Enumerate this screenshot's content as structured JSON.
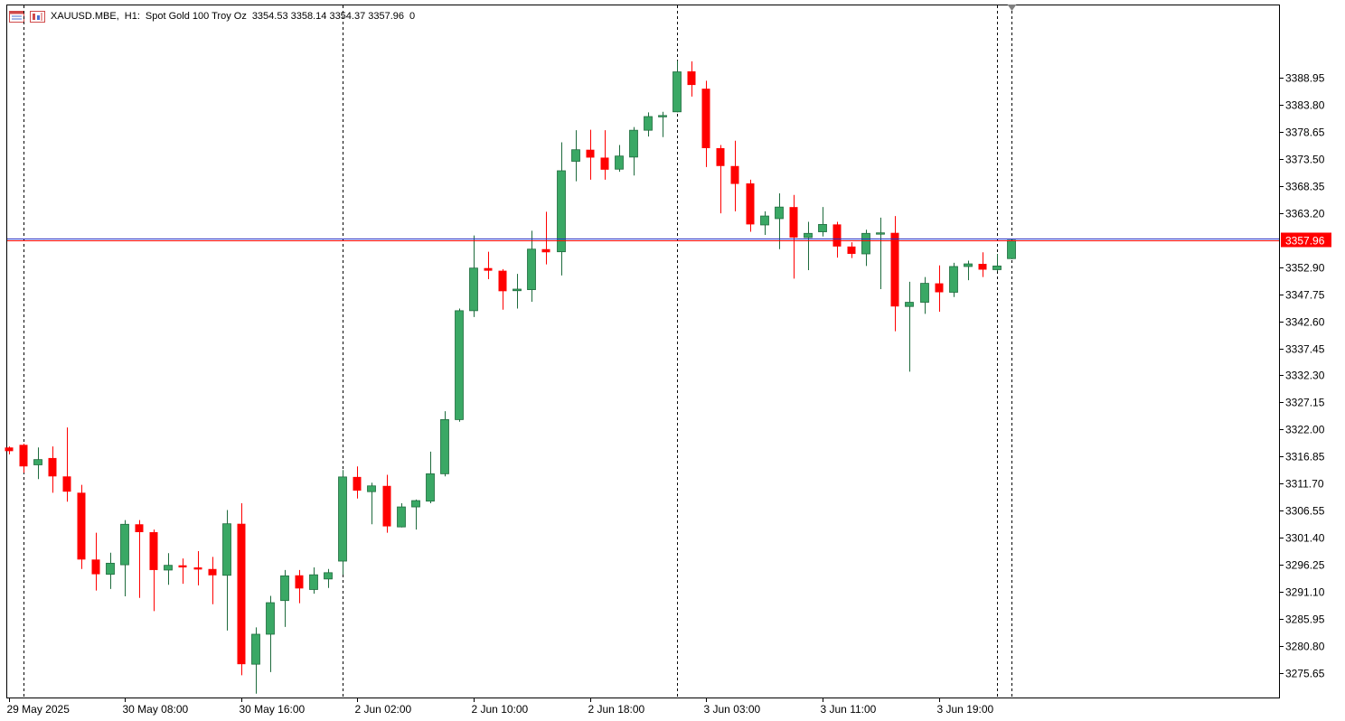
{
  "header": {
    "symbol": "XAUUSD.MBE,",
    "timeframe": "H1:",
    "description": "Spot Gold 100 Troy Oz",
    "ohlc": "3354.53 3358.14 3354.37 3357.96",
    "volume": "0"
  },
  "colors": {
    "bull": "#3aa865",
    "bull_border": "#1e6b3d",
    "bear": "#ff0000",
    "grid": "#000000",
    "bid_line": "#ff0000",
    "ask_line": "#2b2bbf",
    "price_tag_bg": "#ff0000",
    "axis": "#000000"
  },
  "icons": [
    "chart-window-icon",
    "trade-icon"
  ],
  "current_price": "3357.96",
  "chart_data": {
    "type": "candlestick",
    "symbol": "XAUUSD.MBE",
    "timeframe": "H1",
    "ylim": [
      3270.9,
      3402.8
    ],
    "yticks": [
      "3388.95",
      "3383.80",
      "3378.65",
      "3373.50",
      "3368.35",
      "3363.20",
      "3352.90",
      "3347.75",
      "3342.60",
      "3337.45",
      "3332.30",
      "3327.15",
      "3322.00",
      "3316.85",
      "3311.70",
      "3306.55",
      "3301.40",
      "3296.25",
      "3291.10",
      "3285.95",
      "3280.80",
      "3275.65"
    ],
    "xticks": [
      "29 May 2025",
      "30 May 08:00",
      "30 May 16:00",
      "2 Jun 02:00",
      "2 Jun 10:00",
      "2 Jun 18:00",
      "3 Jun 03:00",
      "3 Jun 11:00",
      "3 Jun 19:00"
    ],
    "session_separators": [
      1,
      23,
      46,
      68
    ],
    "candles": [
      {
        "o": 3318.6,
        "h": 3318.8,
        "l": 3317.3,
        "c": 3317.9
      },
      {
        "o": 3319.1,
        "h": 3319.3,
        "l": 3313.8,
        "c": 3315.0
      },
      {
        "o": 3315.3,
        "h": 3318.6,
        "l": 3312.6,
        "c": 3316.3
      },
      {
        "o": 3316.6,
        "h": 3318.8,
        "l": 3310.0,
        "c": 3313.1
      },
      {
        "o": 3313.1,
        "h": 3322.4,
        "l": 3308.3,
        "c": 3310.2
      },
      {
        "o": 3310.0,
        "h": 3311.5,
        "l": 3295.5,
        "c": 3297.3
      },
      {
        "o": 3297.3,
        "h": 3302.4,
        "l": 3291.4,
        "c": 3294.5
      },
      {
        "o": 3294.5,
        "h": 3298.6,
        "l": 3291.7,
        "c": 3296.6
      },
      {
        "o": 3296.3,
        "h": 3304.8,
        "l": 3290.3,
        "c": 3304.0
      },
      {
        "o": 3304.0,
        "h": 3304.8,
        "l": 3290.0,
        "c": 3302.5
      },
      {
        "o": 3302.5,
        "h": 3303.0,
        "l": 3287.5,
        "c": 3295.3
      },
      {
        "o": 3295.3,
        "h": 3298.5,
        "l": 3292.5,
        "c": 3296.2
      },
      {
        "o": 3296.2,
        "h": 3297.5,
        "l": 3292.7,
        "c": 3295.8
      },
      {
        "o": 3295.8,
        "h": 3298.9,
        "l": 3292.4,
        "c": 3295.4
      },
      {
        "o": 3295.5,
        "h": 3297.8,
        "l": 3288.8,
        "c": 3294.3
      },
      {
        "o": 3294.3,
        "h": 3306.7,
        "l": 3283.8,
        "c": 3304.1
      },
      {
        "o": 3304.1,
        "h": 3308.0,
        "l": 3275.3,
        "c": 3277.4
      },
      {
        "o": 3277.4,
        "h": 3284.4,
        "l": 3271.8,
        "c": 3283.1
      },
      {
        "o": 3283.1,
        "h": 3290.4,
        "l": 3275.9,
        "c": 3289.1
      },
      {
        "o": 3289.5,
        "h": 3295.3,
        "l": 3284.5,
        "c": 3294.2
      },
      {
        "o": 3294.3,
        "h": 3295.3,
        "l": 3289.0,
        "c": 3291.8
      },
      {
        "o": 3291.6,
        "h": 3295.8,
        "l": 3290.8,
        "c": 3294.4
      },
      {
        "o": 3293.6,
        "h": 3295.5,
        "l": 3291.9,
        "c": 3294.8
      },
      {
        "o": 3297.0,
        "h": 3314.3,
        "l": 3294.4,
        "c": 3313.0
      },
      {
        "o": 3313.0,
        "h": 3315.0,
        "l": 3308.9,
        "c": 3310.4
      },
      {
        "o": 3310.2,
        "h": 3311.9,
        "l": 3304.0,
        "c": 3311.3
      },
      {
        "o": 3311.3,
        "h": 3313.4,
        "l": 3302.4,
        "c": 3303.6
      },
      {
        "o": 3303.5,
        "h": 3308.0,
        "l": 3303.4,
        "c": 3307.3
      },
      {
        "o": 3307.3,
        "h": 3308.7,
        "l": 3303.0,
        "c": 3308.5
      },
      {
        "o": 3308.4,
        "h": 3317.8,
        "l": 3308.0,
        "c": 3313.6
      },
      {
        "o": 3313.6,
        "h": 3325.5,
        "l": 3313.1,
        "c": 3323.9
      },
      {
        "o": 3323.9,
        "h": 3345.0,
        "l": 3323.5,
        "c": 3344.6
      },
      {
        "o": 3344.6,
        "h": 3358.9,
        "l": 3343.4,
        "c": 3352.7
      },
      {
        "o": 3352.7,
        "h": 3355.8,
        "l": 3350.6,
        "c": 3352.2
      },
      {
        "o": 3352.2,
        "h": 3352.5,
        "l": 3344.8,
        "c": 3348.3
      },
      {
        "o": 3348.4,
        "h": 3351.6,
        "l": 3345.0,
        "c": 3348.7
      },
      {
        "o": 3348.6,
        "h": 3359.8,
        "l": 3346.3,
        "c": 3356.3
      },
      {
        "o": 3356.3,
        "h": 3363.4,
        "l": 3353.4,
        "c": 3355.7
      },
      {
        "o": 3355.8,
        "h": 3376.6,
        "l": 3351.3,
        "c": 3371.2
      },
      {
        "o": 3373.0,
        "h": 3378.9,
        "l": 3369.2,
        "c": 3375.2
      },
      {
        "o": 3375.2,
        "h": 3379.0,
        "l": 3369.5,
        "c": 3373.7
      },
      {
        "o": 3373.7,
        "h": 3378.9,
        "l": 3369.5,
        "c": 3371.4
      },
      {
        "o": 3371.5,
        "h": 3376.1,
        "l": 3371.0,
        "c": 3374.0
      },
      {
        "o": 3373.8,
        "h": 3379.5,
        "l": 3370.3,
        "c": 3378.9
      },
      {
        "o": 3378.9,
        "h": 3382.3,
        "l": 3377.7,
        "c": 3381.5
      },
      {
        "o": 3381.6,
        "h": 3382.4,
        "l": 3377.6,
        "c": 3381.7
      },
      {
        "o": 3382.4,
        "h": 3392.1,
        "l": 3382.3,
        "c": 3390.0
      },
      {
        "o": 3390.1,
        "h": 3392.0,
        "l": 3385.3,
        "c": 3387.5
      },
      {
        "o": 3386.8,
        "h": 3388.3,
        "l": 3371.9,
        "c": 3375.5
      },
      {
        "o": 3375.5,
        "h": 3376.1,
        "l": 3363.1,
        "c": 3372.1
      },
      {
        "o": 3372.1,
        "h": 3376.9,
        "l": 3363.5,
        "c": 3368.7
      },
      {
        "o": 3368.8,
        "h": 3369.5,
        "l": 3359.6,
        "c": 3361.0
      },
      {
        "o": 3360.9,
        "h": 3363.5,
        "l": 3359.0,
        "c": 3362.6
      },
      {
        "o": 3362.1,
        "h": 3366.9,
        "l": 3356.3,
        "c": 3364.3
      },
      {
        "o": 3364.3,
        "h": 3366.6,
        "l": 3350.7,
        "c": 3358.5
      },
      {
        "o": 3358.5,
        "h": 3361.5,
        "l": 3352.3,
        "c": 3359.3
      },
      {
        "o": 3359.6,
        "h": 3364.3,
        "l": 3358.7,
        "c": 3361.0
      },
      {
        "o": 3361.0,
        "h": 3361.5,
        "l": 3354.7,
        "c": 3356.8
      },
      {
        "o": 3356.8,
        "h": 3357.6,
        "l": 3354.6,
        "c": 3355.4
      },
      {
        "o": 3355.4,
        "h": 3360.0,
        "l": 3353.1,
        "c": 3359.3
      },
      {
        "o": 3359.2,
        "h": 3362.3,
        "l": 3348.7,
        "c": 3359.4
      },
      {
        "o": 3359.4,
        "h": 3362.6,
        "l": 3340.7,
        "c": 3345.4
      },
      {
        "o": 3345.4,
        "h": 3350.1,
        "l": 3333.0,
        "c": 3346.2
      },
      {
        "o": 3346.2,
        "h": 3351.0,
        "l": 3344.0,
        "c": 3349.8
      },
      {
        "o": 3349.8,
        "h": 3353.2,
        "l": 3344.4,
        "c": 3348.1
      },
      {
        "o": 3348.1,
        "h": 3353.7,
        "l": 3347.2,
        "c": 3353.0
      },
      {
        "o": 3353.0,
        "h": 3354.1,
        "l": 3350.4,
        "c": 3353.5
      },
      {
        "o": 3353.5,
        "h": 3355.7,
        "l": 3351.0,
        "c": 3352.4
      },
      {
        "o": 3352.4,
        "h": 3355.4,
        "l": 3352.1,
        "c": 3353.1
      },
      {
        "o": 3354.5,
        "h": 3358.1,
        "l": 3354.4,
        "c": 3358.0
      }
    ]
  }
}
